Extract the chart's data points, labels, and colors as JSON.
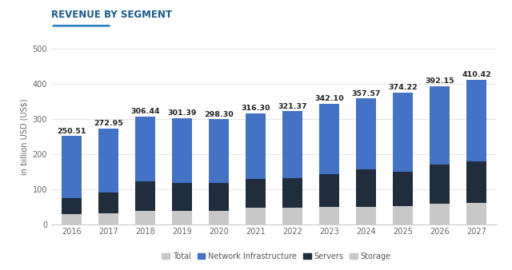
{
  "years": [
    "2016",
    "2017",
    "2018",
    "2019",
    "2020",
    "2021",
    "2022",
    "2023",
    "2024",
    "2025",
    "2026",
    "2027"
  ],
  "totals": [
    250.51,
    272.95,
    306.44,
    301.39,
    298.3,
    316.3,
    321.37,
    342.1,
    357.57,
    374.22,
    392.15,
    410.42
  ],
  "storage": [
    28,
    30,
    38,
    38,
    38,
    46,
    46,
    48,
    50,
    52,
    57,
    60
  ],
  "servers": [
    47,
    60,
    83,
    80,
    80,
    83,
    85,
    94,
    105,
    98,
    112,
    118
  ],
  "network_infra_color": "#4472C4",
  "servers_color": "#1F2D3D",
  "storage_color": "#C8C8C8",
  "total_legend_color": "#C8C8C8",
  "title": "REVENUE BY SEGMENT",
  "title_color": "#1a5c8a",
  "title_underline_color": "#2e86c1",
  "ylabel": "in billion USD (US$)",
  "ylim": [
    0,
    500
  ],
  "yticks": [
    0,
    100,
    200,
    300,
    400,
    500
  ],
  "background_color": "#ffffff",
  "grid_color": "#e5e5e5",
  "label_fontsize": 6.8,
  "title_fontsize": 8.5,
  "axis_fontsize": 7.0
}
